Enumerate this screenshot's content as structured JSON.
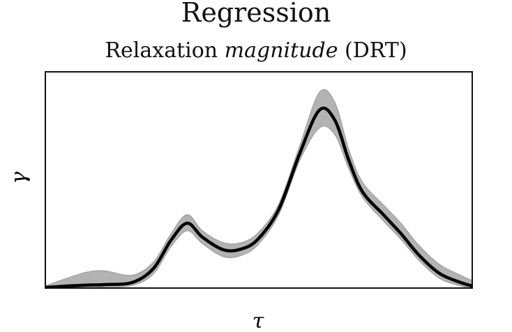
{
  "chart_data": {
    "type": "line",
    "title": "Regression",
    "subtitle_parts": [
      "Relaxation ",
      "magnitude",
      " (DRT)"
    ],
    "xlabel": "τ",
    "ylabel": "γ",
    "ticks_shown": false,
    "grid": false,
    "xlim": [
      0,
      100
    ],
    "ylim": [
      0,
      1
    ],
    "colors": {
      "line": "#000000",
      "band": "#b3b3b3",
      "band_edge": "#999999"
    },
    "series": [
      {
        "x": [
          0,
          5.7,
          10,
          13.9,
          20.4,
          25.3,
          29.4,
          33.2,
          36.8,
          41.7,
          45.8,
          49.8,
          54.7,
          59.6,
          64.2,
          67.8,
          71.1,
          74.3,
          79.2,
          83.3,
          87.4,
          92.3,
          97.2,
          100
        ],
        "y": [
          0.003,
          0.01,
          0.014,
          0.016,
          0.026,
          0.09,
          0.22,
          0.3,
          0.235,
          0.177,
          0.18,
          0.226,
          0.365,
          0.623,
          0.823,
          0.777,
          0.59,
          0.445,
          0.339,
          0.252,
          0.155,
          0.068,
          0.026,
          0.01
        ],
        "lower": [
          0.0,
          0.0,
          0.0,
          0.005,
          0.012,
          0.065,
          0.19,
          0.265,
          0.205,
          0.145,
          0.15,
          0.2,
          0.34,
          0.59,
          0.74,
          0.71,
          0.55,
          0.42,
          0.31,
          0.225,
          0.13,
          0.045,
          0.01,
          0.0
        ],
        "upper": [
          0.01,
          0.05,
          0.075,
          0.08,
          0.06,
          0.12,
          0.25,
          0.34,
          0.265,
          0.21,
          0.21,
          0.255,
          0.39,
          0.66,
          0.905,
          0.86,
          0.64,
          0.49,
          0.385,
          0.3,
          0.2,
          0.11,
          0.06,
          0.035
        ]
      }
    ]
  }
}
